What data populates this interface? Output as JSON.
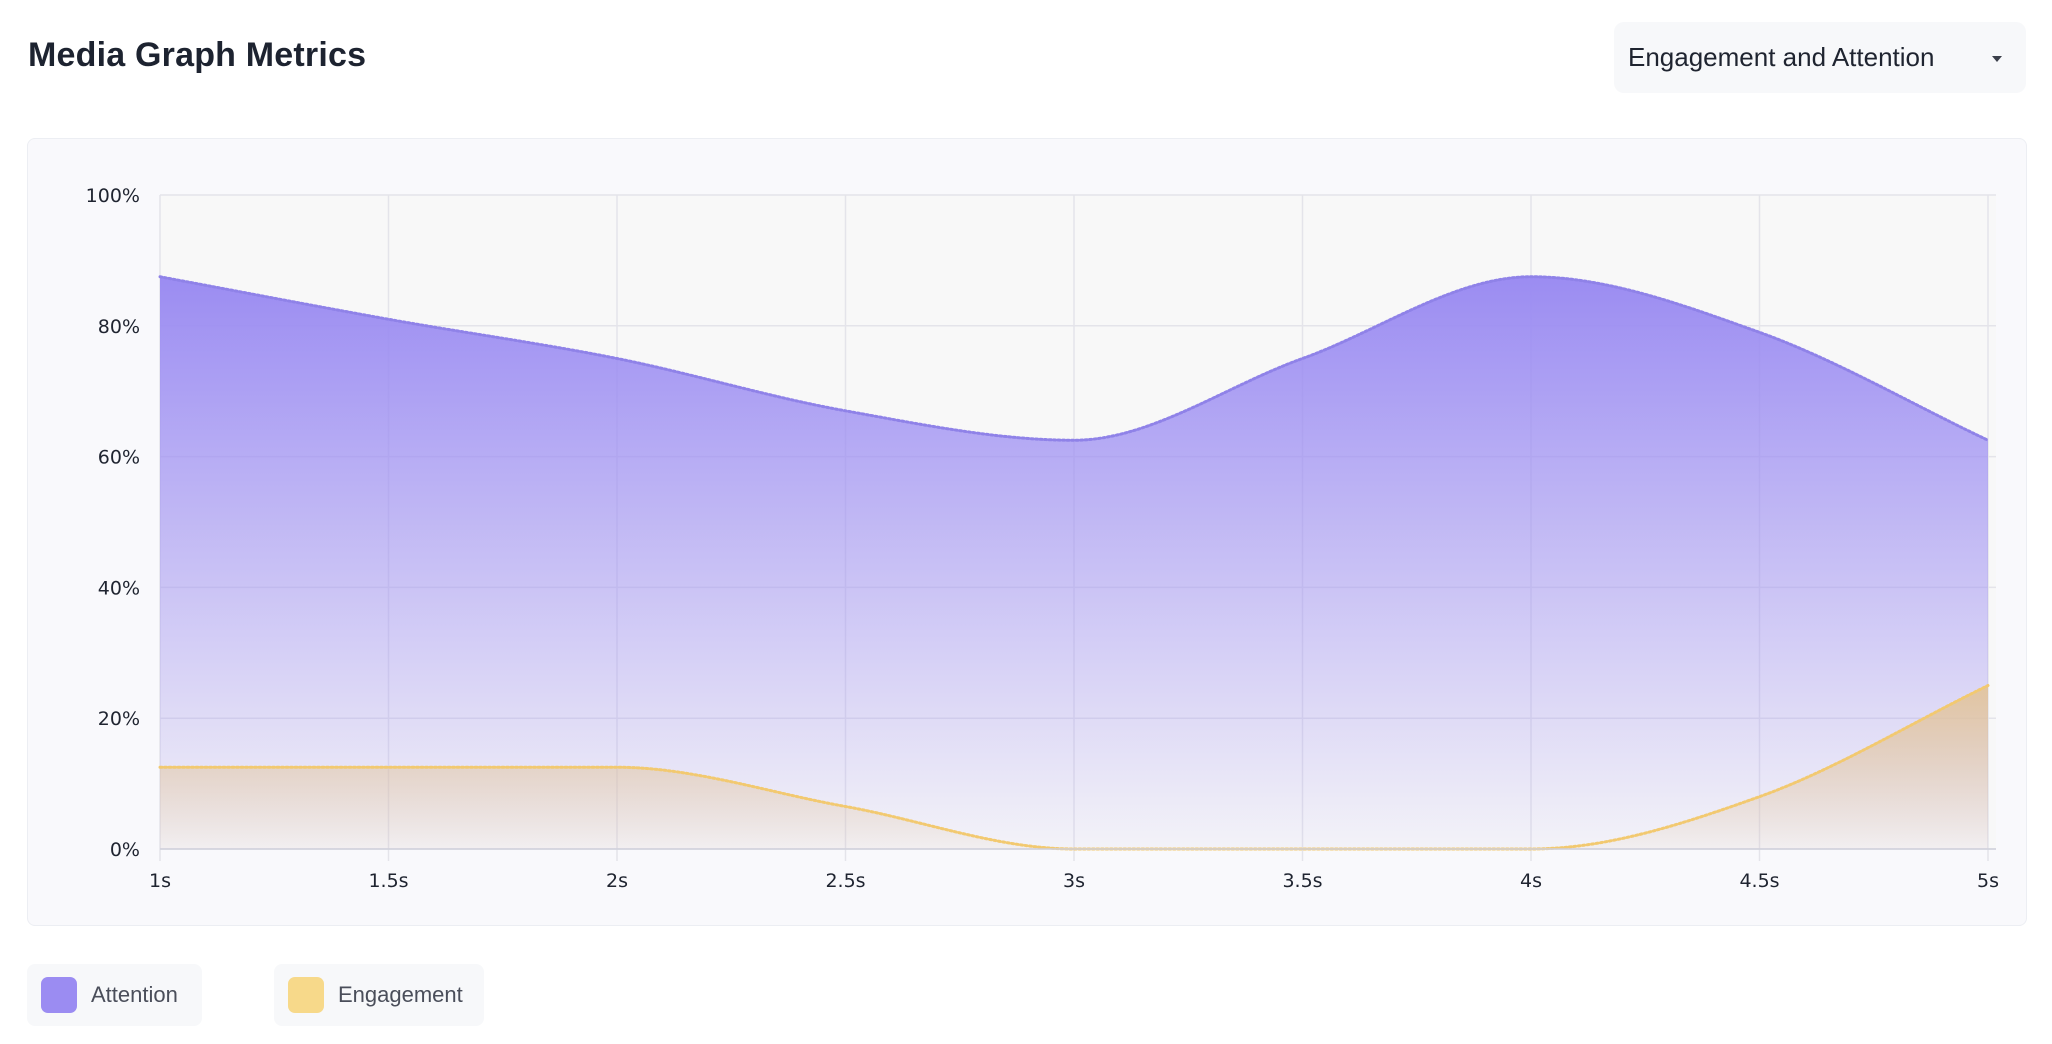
{
  "header": {
    "title": "Media Graph Metrics",
    "select_value": "Engagement and Attention"
  },
  "colors": {
    "attention": "#9b8cf2",
    "engagement": "#f7d98a",
    "engagement_fill": "#e2c49c",
    "grid": "#e4e4ea",
    "plot_bg": "#f8f8f8"
  },
  "chart_data": {
    "type": "area",
    "title": "",
    "xlabel": "",
    "ylabel": "",
    "x": [
      1,
      1.5,
      2,
      2.5,
      3,
      3.5,
      4,
      4.5,
      5
    ],
    "x_tick_labels": [
      "1s",
      "1.5s",
      "2s",
      "2.5s",
      "3s",
      "3.5s",
      "4s",
      "4.5s",
      "5s"
    ],
    "y_ticks": [
      0,
      20,
      40,
      60,
      80,
      100
    ],
    "y_tick_labels": [
      "0%",
      "20%",
      "40%",
      "60%",
      "80%",
      "100%"
    ],
    "ylim": [
      0,
      100
    ],
    "xlim": [
      1,
      5
    ],
    "grid": true,
    "legend_position": "bottom-left",
    "series": [
      {
        "name": "Attention",
        "values": [
          87.5,
          81,
          75,
          67,
          62.5,
          75,
          87.5,
          79,
          62.5
        ]
      },
      {
        "name": "Engagement",
        "values": [
          12.5,
          12.5,
          12.5,
          6.5,
          0,
          0,
          0,
          8,
          25
        ]
      }
    ]
  },
  "legend": {
    "items": [
      {
        "label": "Attention",
        "color": "#9b8cf2"
      },
      {
        "label": "Engagement",
        "color": "#f7d98a"
      }
    ]
  }
}
